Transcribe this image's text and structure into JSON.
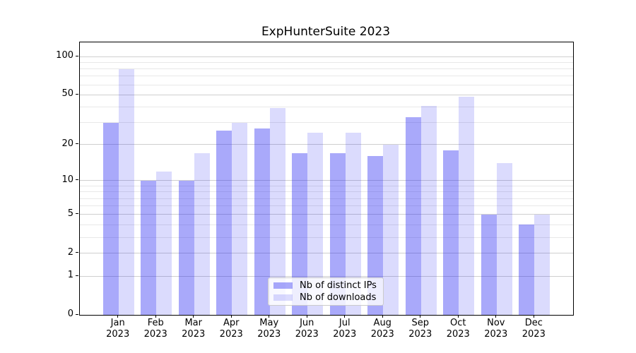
{
  "title": "ExpHunterSuite 2023",
  "chart_data": {
    "type": "bar",
    "title": "ExpHunterSuite 2023",
    "categories": [
      "Jan 2023",
      "Feb 2023",
      "Mar 2023",
      "Apr 2023",
      "May 2023",
      "Jun 2023",
      "Jul 2023",
      "Aug 2023",
      "Sep 2023",
      "Oct 2023",
      "Nov 2023",
      "Dec 2023"
    ],
    "xtick_months": [
      "Jan",
      "Feb",
      "Mar",
      "Apr",
      "May",
      "Jun",
      "Jul",
      "Aug",
      "Sep",
      "Oct",
      "Nov",
      "Dec"
    ],
    "xtick_year": "2023",
    "series": [
      {
        "name": "Nb of distinct IPs",
        "slug": "distinct-ips",
        "color": "rgba(30,30,243,0.38)",
        "values": [
          30,
          10,
          10,
          26,
          27,
          17,
          17,
          16,
          33,
          18,
          5,
          4
        ]
      },
      {
        "name": "Nb of downloads",
        "slug": "downloads",
        "color": "rgba(30,30,243,0.16)",
        "values": [
          80,
          12,
          17,
          30,
          39,
          25,
          25,
          20,
          41,
          48,
          14,
          5
        ]
      }
    ],
    "yscale": "log1p",
    "ylim": [
      0,
      129
    ],
    "yticks": [
      100,
      50,
      20,
      10,
      5,
      2,
      1,
      0
    ],
    "ytick_labels": [
      "100",
      "50",
      "20",
      "10",
      "5",
      "2",
      "1",
      "0"
    ],
    "minor_gridlines": [
      3,
      4,
      6,
      7,
      8,
      9,
      30,
      40,
      60,
      70,
      80,
      90
    ],
    "grid": true,
    "legend_position": "lower center",
    "xlabel": "",
    "ylabel": ""
  },
  "colors": {
    "bar_distinct_ips": "rgba(30,30,243,0.38)",
    "bar_downloads": "rgba(30,30,243,0.16)",
    "grid_major": "#cfcfcf",
    "grid_minor": "#e8e8e8",
    "spine": "#000000",
    "legend_border": "#cbcbcb"
  }
}
